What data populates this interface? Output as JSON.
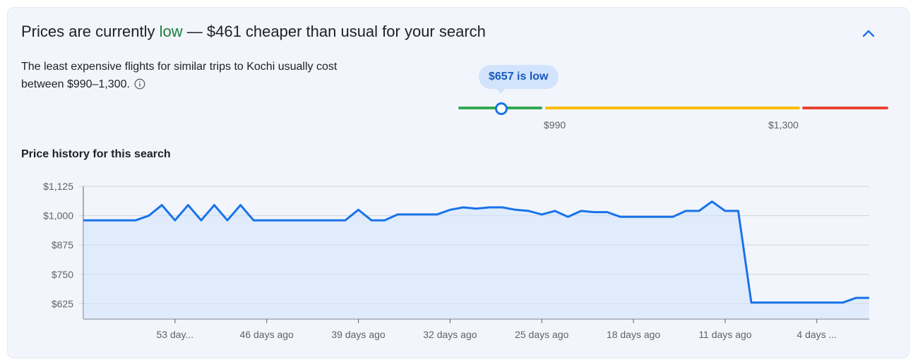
{
  "summary": {
    "headline_prefix": "Prices are currently ",
    "headline_status": "low",
    "headline_suffix": " — $461 cheaper than usual for your search",
    "description": "The least expensive flights for similar trips to Kochi usually cost between $990–1,300."
  },
  "price_range": {
    "badge": "$657 is low",
    "low_threshold_label": "$990",
    "high_threshold_label": "$1,300",
    "current_price": 657,
    "colors": {
      "low": "#34a853",
      "typical": "#fbbc04",
      "high": "#ea4335"
    }
  },
  "history": {
    "title": "Price history for this search"
  },
  "icons": {
    "collapse": "chevron-up-icon",
    "info": "info-icon"
  },
  "colors": {
    "accent": "#1a73e8",
    "low_text": "#188038"
  },
  "chart_data": {
    "type": "area",
    "title": "",
    "xlabel": "",
    "ylabel": "",
    "ylim": [
      560,
      1125
    ],
    "yticks": [
      625,
      750,
      875,
      1000,
      1125
    ],
    "ytick_labels": [
      "$625",
      "$750",
      "$875",
      "$1,000",
      "$1,125"
    ],
    "xticks": [
      -53,
      -46,
      -39,
      -32,
      -25,
      -18,
      -11,
      -4
    ],
    "xtick_labels": [
      "53 day...",
      "46 days ago",
      "39 days ago",
      "32 days ago",
      "25 days ago",
      "18 days ago",
      "11 days ago",
      "4 days ..."
    ],
    "xlim": [
      -60,
      0
    ],
    "grid": true,
    "series": [
      {
        "color": "#1a73e8",
        "x": [
          -60,
          -59,
          -58,
          -57,
          -56,
          -55,
          -54,
          -53,
          -52,
          -51,
          -50,
          -49,
          -48,
          -47,
          -46,
          -45,
          -44,
          -43,
          -42,
          -41,
          -40,
          -39,
          -38,
          -37,
          -36,
          -35,
          -34,
          -33,
          -32,
          -31,
          -30,
          -29,
          -28,
          -27,
          -26,
          -25,
          -24,
          -23,
          -22,
          -21,
          -20,
          -19,
          -18,
          -17,
          -16,
          -15,
          -14,
          -13,
          -12,
          -11,
          -10,
          -9,
          -8,
          -7,
          -6,
          -5,
          -4,
          -3,
          -2,
          -1,
          0
        ],
        "values": [
          980,
          980,
          980,
          980,
          980,
          1000,
          1045,
          980,
          1045,
          980,
          1045,
          980,
          1045,
          980,
          980,
          980,
          980,
          980,
          980,
          980,
          980,
          1025,
          980,
          980,
          1005,
          1005,
          1005,
          1005,
          1025,
          1035,
          1030,
          1035,
          1035,
          1025,
          1020,
          1005,
          1020,
          995,
          1020,
          1015,
          1015,
          995,
          995,
          995,
          995,
          995,
          1020,
          1020,
          1060,
          1020,
          1020,
          630,
          630,
          630,
          630,
          630,
          630,
          630,
          630,
          650,
          650
        ]
      }
    ]
  }
}
